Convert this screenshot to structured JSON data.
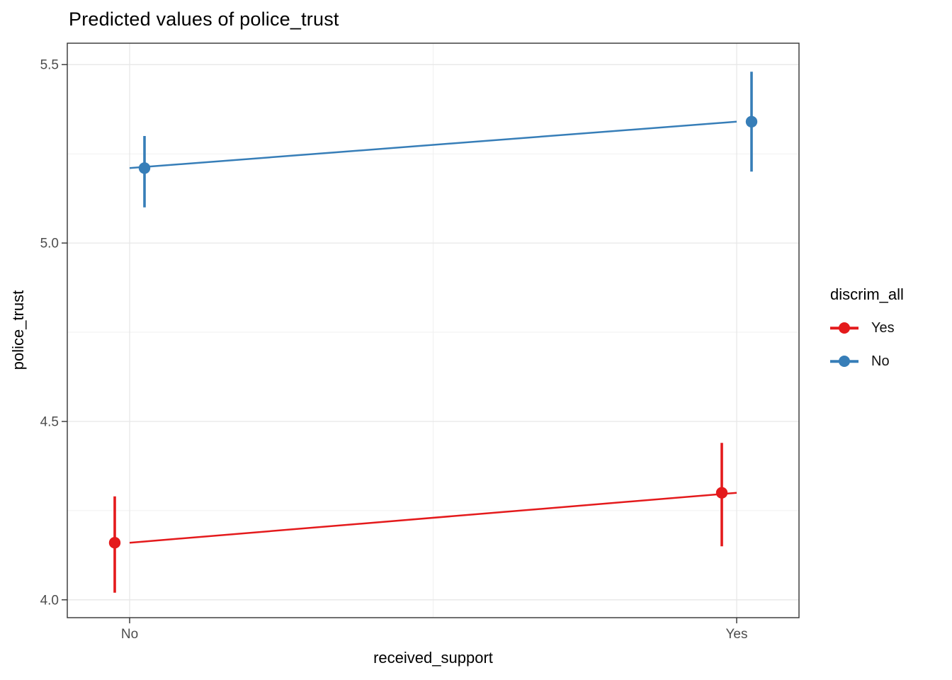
{
  "title": "Predicted values of police_trust",
  "axes": {
    "x": {
      "label": "received_support",
      "categories": [
        "No",
        "Yes"
      ]
    },
    "y": {
      "label": "police_trust",
      "tick_labels": [
        "4.0",
        "4.5",
        "5.0",
        "5.5"
      ]
    }
  },
  "legend": {
    "title": "discrim_all",
    "entries": [
      {
        "label": "Yes",
        "color": "#E41A1C"
      },
      {
        "label": "No",
        "color": "#377EB8"
      }
    ]
  },
  "chart_data": {
    "type": "line",
    "title": "Predicted values of police_trust",
    "xlabel": "received_support",
    "ylabel": "police_trust",
    "categories": [
      "No",
      "Yes"
    ],
    "series": [
      {
        "name": "Yes",
        "color": "#E41A1C",
        "values": [
          4.16,
          4.3
        ],
        "ci_low": [
          4.02,
          4.15
        ],
        "ci_high": [
          4.29,
          4.44
        ]
      },
      {
        "name": "No",
        "color": "#377EB8",
        "values": [
          5.21,
          5.34
        ],
        "ci_low": [
          5.1,
          5.2
        ],
        "ci_high": [
          5.3,
          5.48
        ]
      }
    ],
    "ylim": [
      3.95,
      5.56
    ],
    "y_ticks": [
      4.0,
      4.5,
      5.0,
      5.5
    ],
    "y_tick_labels": [
      "4.0",
      "4.5",
      "5.0",
      "5.5"
    ],
    "y_minor": [
      4.25,
      4.75,
      5.25
    ],
    "grid": true,
    "legend_position": "right",
    "legend_title": "discrim_all",
    "colors": {
      "grid_major": "#E7E7E7",
      "grid_minor": "#F0F0F0",
      "panel_border": "#333333",
      "tick_text": "#4D4D4D"
    }
  }
}
